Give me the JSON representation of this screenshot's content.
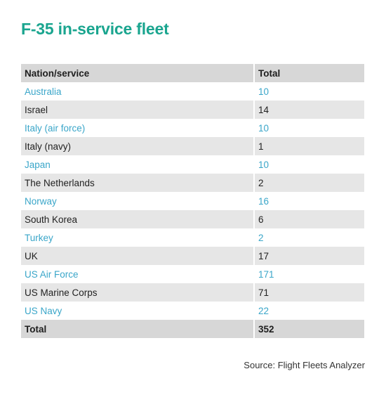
{
  "title": "F-35 in-service fleet",
  "colors": {
    "title": "#1aa58f",
    "highlight_text": "#3aa6c9",
    "header_bg": "#d7d7d7",
    "stripe_bg": "#e6e6e6"
  },
  "table": {
    "headers": [
      "Nation/service",
      "Total"
    ],
    "rows": [
      [
        "Australia",
        "10"
      ],
      [
        "Israel",
        "14"
      ],
      [
        "Italy (air force)",
        "10"
      ],
      [
        "Italy (navy)",
        "1"
      ],
      [
        "Japan",
        "10"
      ],
      [
        "The Netherlands",
        "2"
      ],
      [
        "Norway",
        "16"
      ],
      [
        "South Korea",
        "6"
      ],
      [
        "Turkey",
        "2"
      ],
      [
        "UK",
        "17"
      ],
      [
        "US Air Force",
        "171"
      ],
      [
        "US Marine Corps",
        "71"
      ],
      [
        "US Navy",
        "22"
      ]
    ],
    "total": [
      "Total",
      "352"
    ]
  },
  "source": "Source: Flight Fleets Analyzer"
}
